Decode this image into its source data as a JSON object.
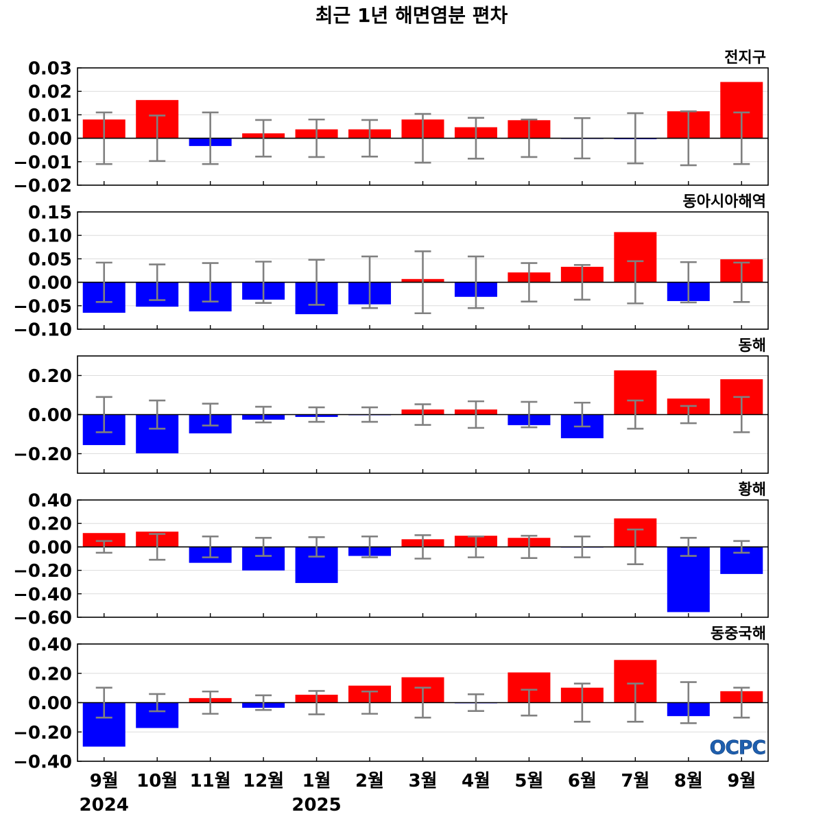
{
  "chart_data": {
    "type": "bar",
    "title": "최근 1년 해면염분 편차",
    "categories": [
      "9월",
      "10월",
      "11월",
      "12월",
      "1월",
      "2월",
      "3월",
      "4월",
      "5월",
      "6월",
      "7월",
      "8월",
      "9월"
    ],
    "year_labels": [
      {
        "category_index": 0,
        "label": "2024"
      },
      {
        "category_index": 4,
        "label": "2025"
      }
    ],
    "grid": true,
    "error_bar_center": 0,
    "colors": {
      "positive_bar": "#ff0000",
      "negative_bar": "#0000ff",
      "error_bar": "#808080",
      "zero_line": "#000000",
      "grid": "#dcdcdc"
    },
    "panels": [
      {
        "title": "전지구",
        "values": [
          0.008,
          0.0163,
          -0.0033,
          0.0021,
          0.0038,
          0.0038,
          0.008,
          0.0047,
          0.0077,
          -0.0001,
          -0.0004,
          0.0115,
          0.024
        ],
        "errors": [
          0.011,
          0.0097,
          0.011,
          0.0078,
          0.008,
          0.0078,
          0.0104,
          0.0087,
          0.008,
          0.0086,
          0.0107,
          0.0115,
          0.011
        ],
        "ylim": [
          -0.02,
          0.03
        ],
        "yticks": [
          0.03,
          0.02,
          0.01,
          0,
          -0.01,
          -0.02
        ],
        "ytick_labels": [
          "0.03",
          "0.02",
          "0.01",
          "0.00",
          "−0.01",
          "−0.02"
        ]
      },
      {
        "title": "동아시아해역",
        "values": [
          -0.065,
          -0.052,
          -0.062,
          -0.037,
          -0.068,
          -0.047,
          0.007,
          -0.031,
          0.021,
          0.033,
          0.107,
          -0.04,
          0.049
        ],
        "errors": [
          0.042,
          0.038,
          0.041,
          0.044,
          0.048,
          0.055,
          0.066,
          0.055,
          0.041,
          0.037,
          0.045,
          0.043,
          0.042
        ],
        "ylim": [
          -0.1,
          0.15
        ],
        "yticks": [
          0.15,
          0.1,
          0.05,
          0,
          -0.05,
          -0.1
        ],
        "ytick_labels": [
          "0.15",
          "0.10",
          "0.05",
          "0.00",
          "−0.05",
          "−0.10"
        ]
      },
      {
        "title": "동해",
        "values": [
          -0.156,
          -0.198,
          -0.096,
          -0.026,
          -0.012,
          -0.003,
          0.026,
          0.026,
          -0.054,
          -0.121,
          0.226,
          0.082,
          0.181
        ],
        "errors": [
          0.09,
          0.072,
          0.056,
          0.04,
          0.037,
          0.037,
          0.053,
          0.068,
          0.065,
          0.061,
          0.072,
          0.044,
          0.09
        ],
        "ylim": [
          -0.3,
          0.3
        ],
        "yticks": [
          0.2,
          0,
          -0.2
        ],
        "ytick_labels": [
          "0.20",
          "0.00",
          "−0.20"
        ]
      },
      {
        "title": "황해",
        "values": [
          0.118,
          0.13,
          -0.136,
          -0.201,
          -0.308,
          -0.077,
          0.065,
          0.095,
          0.077,
          -0.005,
          0.243,
          -0.556,
          -0.231
        ],
        "errors": [
          0.05,
          0.11,
          0.089,
          0.077,
          0.083,
          0.089,
          0.1,
          0.089,
          0.095,
          0.089,
          0.148,
          0.077,
          0.05
        ],
        "ylim": [
          -0.6,
          0.4
        ],
        "yticks": [
          0.4,
          0.2,
          0,
          -0.2,
          -0.4,
          -0.6
        ],
        "ytick_labels": [
          "0.40",
          "0.20",
          "0.00",
          "−0.20",
          "−0.40",
          "−0.60"
        ]
      },
      {
        "title": "동중국해",
        "values": [
          -0.3,
          -0.173,
          0.031,
          -0.035,
          0.054,
          0.116,
          0.173,
          -0.004,
          0.206,
          0.102,
          0.291,
          -0.092,
          0.078
        ],
        "errors": [
          0.102,
          0.059,
          0.076,
          0.05,
          0.08,
          0.076,
          0.102,
          0.057,
          0.088,
          0.13,
          0.13,
          0.14,
          0.102
        ],
        "ylim": [
          -0.4,
          0.4
        ],
        "yticks": [
          0.4,
          0.2,
          0,
          -0.2,
          -0.4
        ],
        "ytick_labels": [
          "0.40",
          "0.20",
          "0.00",
          "−0.20",
          "−0.40"
        ]
      }
    ]
  },
  "logo": {
    "text": "OCPC",
    "color": "#1f5fae"
  }
}
